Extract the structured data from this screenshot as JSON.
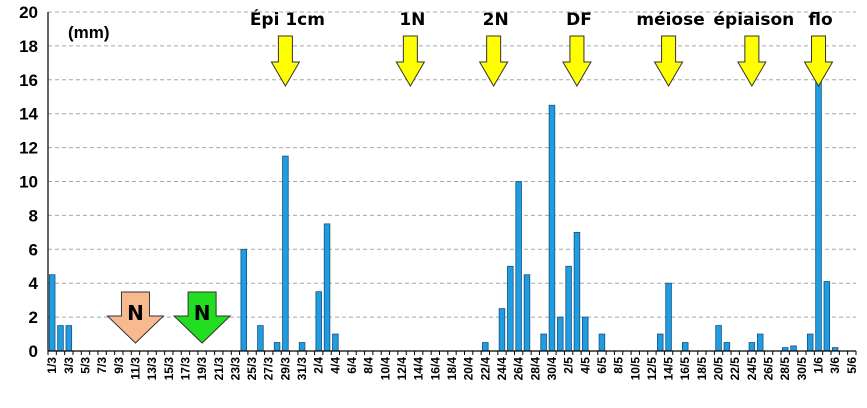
{
  "chart_data": {
    "type": "bar",
    "unit_label": "(mm)",
    "ylim": [
      0,
      20
    ],
    "yticks": [
      0,
      2,
      4,
      6,
      8,
      10,
      12,
      14,
      16,
      18,
      20
    ],
    "grid": "horizontal dashed",
    "bar_color": "#1e9ee0",
    "categories": [
      "1/3",
      "2/3",
      "3/3",
      "4/3",
      "5/3",
      "6/3",
      "7/3",
      "8/3",
      "9/3",
      "10/3",
      "11/3",
      "12/3",
      "13/3",
      "14/3",
      "15/3",
      "16/3",
      "17/3",
      "18/3",
      "19/3",
      "20/3",
      "21/3",
      "22/3",
      "23/3",
      "24/3",
      "25/3",
      "26/3",
      "27/3",
      "28/3",
      "29/3",
      "30/3",
      "31/3",
      "1/4",
      "2/4",
      "3/4",
      "4/4",
      "5/4",
      "6/4",
      "7/4",
      "8/4",
      "9/4",
      "10/4",
      "11/4",
      "12/4",
      "13/4",
      "14/4",
      "15/4",
      "16/4",
      "17/4",
      "18/4",
      "19/4",
      "20/4",
      "21/4",
      "22/4",
      "23/4",
      "24/4",
      "25/4",
      "26/4",
      "27/4",
      "28/4",
      "29/4",
      "30/4",
      "1/5",
      "2/5",
      "3/5",
      "4/5",
      "5/5",
      "6/5",
      "7/5",
      "8/5",
      "9/5",
      "10/5",
      "11/5",
      "12/5",
      "13/5",
      "14/5",
      "15/5",
      "16/5",
      "17/5",
      "18/5",
      "19/5",
      "20/5",
      "21/5",
      "22/5",
      "23/5",
      "24/5",
      "25/5",
      "26/5",
      "27/5",
      "28/5",
      "29/5",
      "30/5",
      "31/5",
      "1/6",
      "2/6",
      "3/6",
      "4/6",
      "5/6"
    ],
    "tick_labels": [
      "1/3",
      "3/3",
      "5/3",
      "7/3",
      "9/3",
      "11/3",
      "13/3",
      "15/3",
      "17/3",
      "19/3",
      "21/3",
      "23/3",
      "25/3",
      "27/3",
      "29/3",
      "31/3",
      "2/4",
      "4/4",
      "6/4",
      "8/4",
      "10/4",
      "12/4",
      "14/4",
      "16/4",
      "18/4",
      "20/4",
      "22/4",
      "24/4",
      "26/4",
      "28/4",
      "30/4",
      "2/5",
      "4/5",
      "6/5",
      "8/5",
      "10/5",
      "12/5",
      "14/5",
      "16/5",
      "18/5",
      "20/5",
      "22/5",
      "24/5",
      "26/5",
      "28/5",
      "30/5",
      "1/6",
      "3/6",
      "5/6"
    ],
    "values": [
      4.5,
      1.5,
      1.5,
      0,
      0,
      0,
      0,
      0,
      0,
      0,
      0,
      0,
      0,
      0,
      0,
      0,
      0,
      0,
      0,
      0,
      0,
      0,
      0,
      6,
      0,
      1.5,
      0,
      0.5,
      11.5,
      0,
      0.5,
      0,
      3.5,
      7.5,
      1,
      0,
      0,
      0,
      0,
      0,
      0,
      0,
      0,
      0,
      0,
      0,
      0,
      0,
      0,
      0,
      0,
      0,
      0.5,
      0,
      2.5,
      5,
      10,
      4.5,
      0,
      1,
      14.5,
      2,
      5,
      7,
      2,
      0,
      1,
      0,
      0,
      0,
      0,
      0,
      0,
      1,
      4,
      0,
      0.5,
      0,
      0,
      0,
      1.5,
      0.5,
      0,
      0,
      0.5,
      1,
      0,
      0,
      0.2,
      0.3,
      0,
      1,
      16,
      4.1,
      0.2,
      0,
      0
    ],
    "stage_markers": [
      {
        "label": "Épi 1cm",
        "date": "29/3"
      },
      {
        "label": "1N",
        "date": "13/4"
      },
      {
        "label": "2N",
        "date": "23/4"
      },
      {
        "label": "DF",
        "date": "3/5"
      },
      {
        "label": "méiose",
        "date": "14/5"
      },
      {
        "label": "épiaison",
        "date": "24/5"
      },
      {
        "label": "flo",
        "date": "1/6"
      }
    ],
    "nitrogen_markers": [
      {
        "label": "N",
        "date": "11/3",
        "color": "#f9b98f"
      },
      {
        "label": "N",
        "date": "19/3",
        "color": "#22dd22"
      }
    ],
    "stage_arrow_color": "#ffff00"
  }
}
